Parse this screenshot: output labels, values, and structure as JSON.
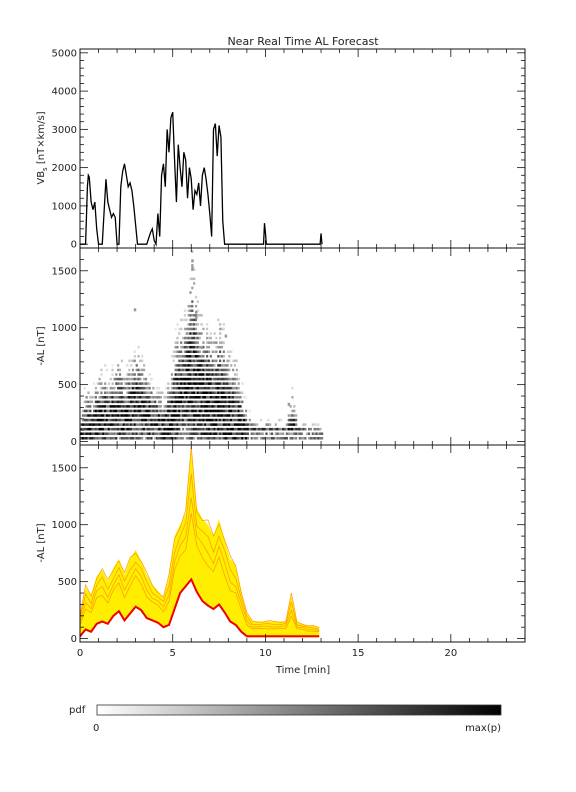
{
  "title": "Near Real Time AL Forecast",
  "colors": {
    "axis": "#111111",
    "panel1_line": "#000000",
    "band_fill": "#ffee00",
    "band_edge": "#ff9900",
    "median": "#ee0000",
    "colorbar_low": "#ffffff",
    "colorbar_high": "#000000"
  },
  "chart_data": [
    {
      "type": "line",
      "title": "Near Real Time AL Forecast",
      "ylabel_main": "VB",
      "ylabel_sub": "s",
      "ylabel_units": " [nT×km/s]",
      "xlim": [
        0,
        24
      ],
      "ylim": [
        -100,
        5100
      ],
      "yticks": [
        "0",
        "1000",
        "2000",
        "3000",
        "4000",
        "5000"
      ],
      "series": [
        {
          "x": [
            0.0,
            0.3,
            0.4,
            0.45,
            0.5,
            0.6,
            0.7,
            0.8,
            0.9,
            1.0,
            1.05,
            1.2,
            1.4,
            1.5,
            1.6,
            1.7,
            1.8,
            1.9,
            2.0,
            2.1,
            2.2,
            2.3,
            2.4,
            2.5,
            2.6,
            2.7,
            2.8,
            2.9,
            3.0,
            3.1,
            3.2,
            3.3,
            3.4,
            3.6,
            3.8,
            3.9,
            4.0,
            4.1,
            4.2,
            4.3,
            4.4,
            4.5,
            4.6,
            4.7,
            4.8,
            4.9,
            5.0,
            5.1,
            5.2,
            5.3,
            5.4,
            5.5,
            5.6,
            5.7,
            5.8,
            5.9,
            6.0,
            6.1,
            6.2,
            6.3,
            6.4,
            6.5,
            6.6,
            6.7,
            6.8,
            6.9,
            7.0,
            7.1,
            7.2,
            7.3,
            7.4,
            7.5,
            7.6,
            7.7,
            7.8,
            9.9,
            9.95,
            10.0,
            10.05,
            12.95,
            13.0,
            13.05
          ],
          "y": [
            0,
            0,
            1500,
            1800,
            1750,
            1100,
            900,
            1100,
            400,
            0,
            0,
            0,
            1700,
            1100,
            900,
            700,
            800,
            700,
            0,
            0,
            1500,
            1900,
            2100,
            1800,
            1500,
            1600,
            1400,
            1000,
            500,
            0,
            0,
            0,
            0,
            0,
            300,
            400,
            100,
            0,
            800,
            200,
            1800,
            2100,
            1500,
            3000,
            2400,
            3300,
            3450,
            2200,
            1100,
            2600,
            2000,
            1500,
            2400,
            2200,
            1200,
            2000,
            1700,
            900,
            1400,
            1300,
            1600,
            1000,
            1800,
            2000,
            1700,
            1300,
            800,
            200,
            3000,
            3150,
            2300,
            3100,
            2800,
            600,
            0,
            0,
            550,
            300,
            0,
            0,
            280,
            0
          ]
        }
      ]
    },
    {
      "type": "heatmap",
      "ylabel": "-AL [nT]",
      "xlim": [
        0,
        24
      ],
      "ylim": [
        -30,
        1700
      ],
      "yticks": [
        "0",
        "500",
        "1000",
        "1500"
      ],
      "time_range": [
        0,
        13
      ],
      "peak_value": 1600
    },
    {
      "type": "area",
      "ylabel": "-AL [nT]",
      "xlabel": "Time [min]",
      "xlim": [
        0,
        24
      ],
      "ylim": [
        -30,
        1700
      ],
      "yticks": [
        "0",
        "500",
        "1000",
        "1500"
      ],
      "xticks": [
        "0",
        "5",
        "10",
        "15",
        "20"
      ],
      "series": [
        {
          "name": "median",
          "x": [
            0.0,
            0.3,
            0.6,
            0.9,
            1.2,
            1.5,
            1.8,
            2.1,
            2.4,
            2.7,
            3.0,
            3.3,
            3.6,
            3.9,
            4.2,
            4.5,
            4.8,
            5.1,
            5.4,
            5.7,
            6.0,
            6.3,
            6.6,
            6.9,
            7.2,
            7.5,
            7.8,
            8.1,
            8.4,
            8.7,
            9.0,
            9.3,
            9.6,
            9.9,
            10.2,
            10.5,
            10.8,
            11.1,
            11.4,
            11.7,
            12.0,
            12.3,
            12.6,
            12.9
          ],
          "y": [
            20,
            80,
            60,
            130,
            150,
            130,
            200,
            240,
            160,
            220,
            280,
            250,
            180,
            160,
            140,
            100,
            120,
            260,
            400,
            460,
            520,
            410,
            330,
            290,
            260,
            300,
            230,
            150,
            120,
            60,
            20,
            20,
            20,
            20,
            20,
            20,
            20,
            20,
            20,
            20,
            20,
            20,
            20,
            20
          ]
        },
        {
          "name": "upper",
          "x": [
            0.0,
            0.3,
            0.6,
            0.9,
            1.2,
            1.5,
            1.8,
            2.1,
            2.4,
            2.7,
            3.0,
            3.3,
            3.6,
            3.9,
            4.2,
            4.5,
            4.8,
            5.1,
            5.4,
            5.7,
            6.0,
            6.3,
            6.6,
            6.9,
            7.2,
            7.5,
            7.8,
            8.1,
            8.4,
            8.7,
            9.0,
            9.3,
            9.6,
            9.9,
            10.2,
            10.5,
            10.8,
            11.1,
            11.4,
            11.7,
            12.0,
            12.3,
            12.6,
            12.9
          ],
          "y": [
            200,
            450,
            380,
            550,
            600,
            500,
            620,
            700,
            560,
            700,
            780,
            680,
            560,
            470,
            420,
            360,
            540,
            900,
            1000,
            1100,
            1680,
            1150,
            1050,
            1000,
            900,
            1050,
            860,
            700,
            650,
            420,
            220,
            150,
            150,
            150,
            150,
            150,
            150,
            150,
            380,
            150,
            130,
            110,
            110,
            100
          ]
        }
      ]
    }
  ],
  "colorbar": {
    "label": "pdf",
    "min_label": "0",
    "max_label": "max(p)"
  }
}
